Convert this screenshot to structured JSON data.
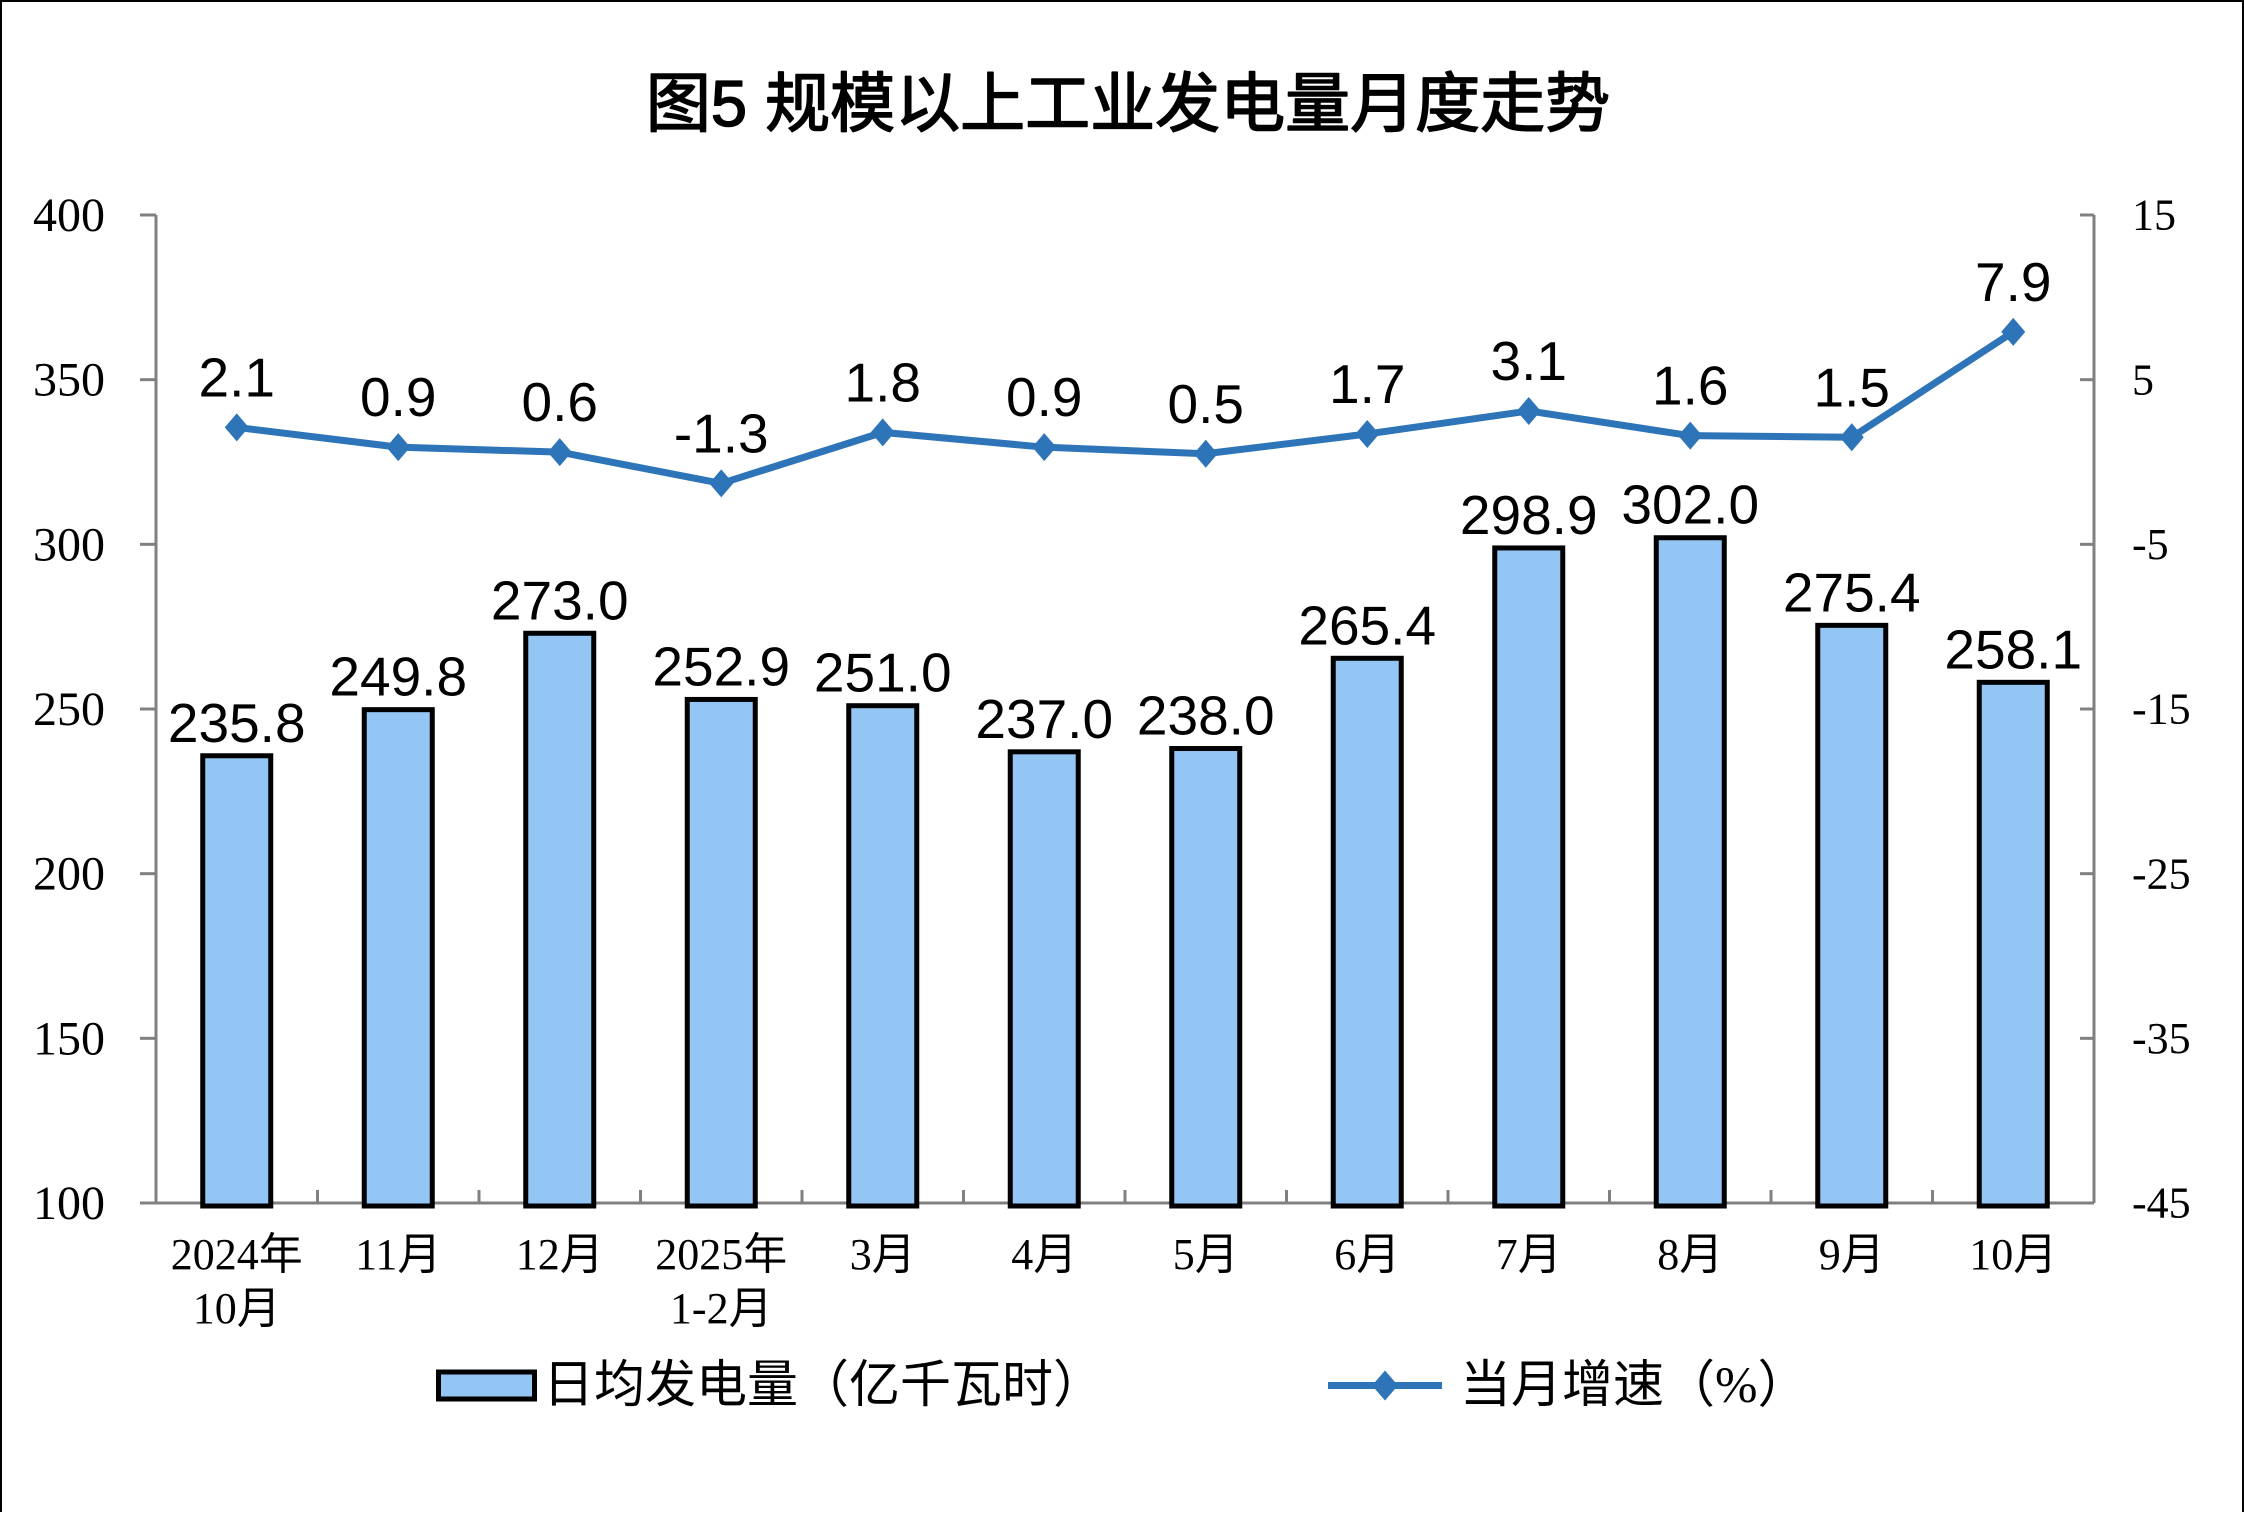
{
  "chart_data": {
    "type": "bar+line",
    "title": "图5 规模以上工业发电量月度走势",
    "categories": [
      [
        "2024年",
        "10月"
      ],
      [
        "11月"
      ],
      [
        "12月"
      ],
      [
        "2025年",
        "1-2月"
      ],
      [
        "3月"
      ],
      [
        "4月"
      ],
      [
        "5月"
      ],
      [
        "6月"
      ],
      [
        "7月"
      ],
      [
        "8月"
      ],
      [
        "9月"
      ],
      [
        "10月"
      ]
    ],
    "series": [
      {
        "name": "日均发电量（亿千瓦时）",
        "type": "bar",
        "axis": "left",
        "values": [
          235.8,
          249.8,
          273.0,
          252.9,
          251.0,
          237.0,
          238.0,
          265.4,
          298.9,
          302.0,
          275.4,
          258.1
        ],
        "labels": [
          "235.8",
          "249.8",
          "273.0",
          "252.9",
          "251.0",
          "237.0",
          "238.0",
          "265.4",
          "298.9",
          "302.0",
          "275.4",
          "258.1"
        ]
      },
      {
        "name": "当月增速（%）",
        "type": "line",
        "axis": "right",
        "values": [
          2.1,
          0.9,
          0.6,
          -1.3,
          1.8,
          0.9,
          0.5,
          1.7,
          3.1,
          1.6,
          1.5,
          7.9
        ],
        "labels": [
          "2.1",
          "0.9",
          "0.6",
          "-1.3",
          "1.8",
          "0.9",
          "0.5",
          "1.7",
          "3.1",
          "1.6",
          "1.5",
          "7.9"
        ]
      }
    ],
    "left_axis": {
      "min": 100,
      "max": 400,
      "step": 50,
      "tick_labels": [
        "100",
        "150",
        "200",
        "250",
        "300",
        "350",
        "400"
      ]
    },
    "right_axis": {
      "min": -45,
      "max": 15,
      "step": 10,
      "tick_labels": [
        "-45",
        "-35",
        "-25",
        "-15",
        "-5",
        "5",
        "15"
      ]
    },
    "legend_position": "bottom",
    "grid": false,
    "colors": {
      "bar_fill": "#94C6F5",
      "bar_border": "#000000",
      "line": "#2E74B8",
      "marker": "#2E74B8",
      "axis": "#808080",
      "text": "#000000",
      "frame": "#000000",
      "background": "#ffffff"
    }
  }
}
